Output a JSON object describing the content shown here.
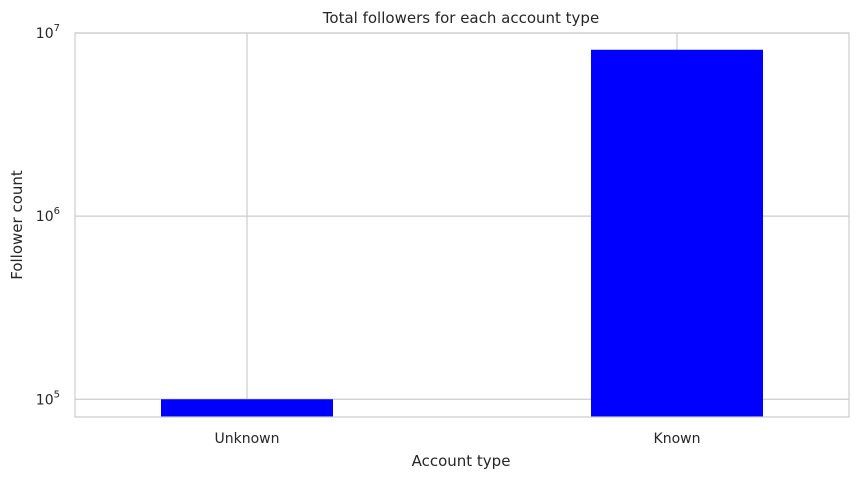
{
  "chart_data": {
    "type": "bar",
    "title": "Total followers for each account type",
    "xlabel": "Account type",
    "ylabel": "Follower count",
    "categories": [
      "Unknown",
      "Known"
    ],
    "values": [
      100000,
      8100000
    ],
    "yscale": "log",
    "ylim": [
      80000,
      10000000
    ],
    "yticks": [
      {
        "value": 100000,
        "base": "10",
        "exp": "5"
      },
      {
        "value": 1000000,
        "base": "10",
        "exp": "6"
      },
      {
        "value": 10000000,
        "base": "10",
        "exp": "7"
      }
    ],
    "bar_color": "#0000ff",
    "grid": true,
    "legend": "none"
  }
}
